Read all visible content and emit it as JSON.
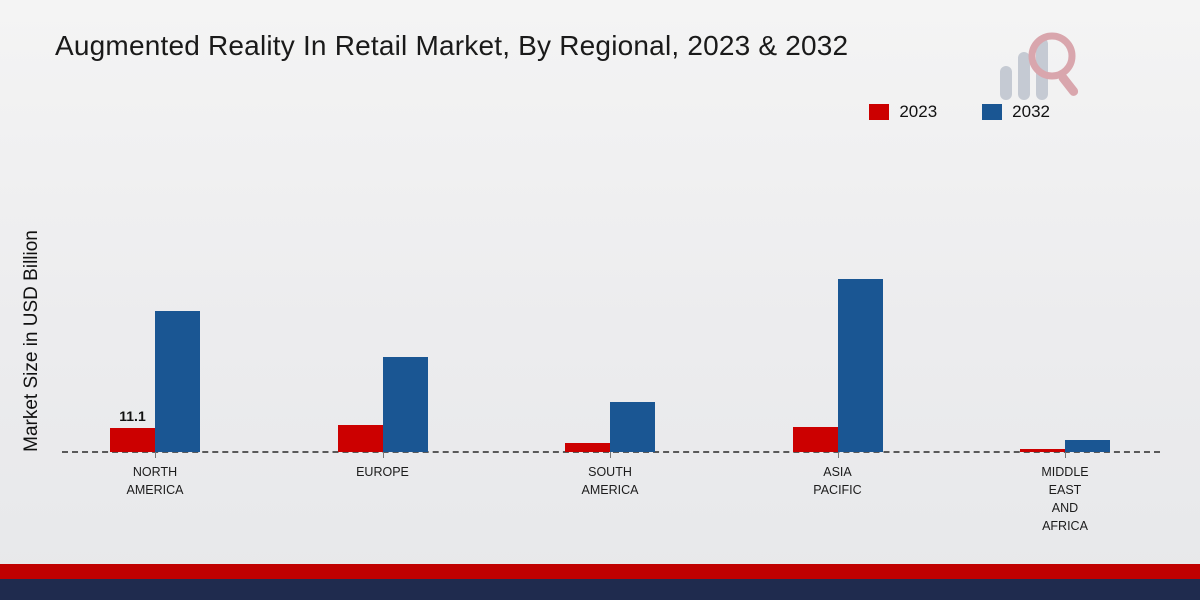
{
  "title": "Augmented Reality In Retail Market, By Regional, 2023 & 2032",
  "ylabel": "Market Size in USD Billion",
  "legend": [
    {
      "label": "2023",
      "color": "#cc0000"
    },
    {
      "label": "2032",
      "color": "#1a5693"
    }
  ],
  "colors": {
    "bar_2023": "#cc0000",
    "bar_2032": "#1a5693",
    "strip_red": "#c00000",
    "strip_navy": "#1f2b4e"
  },
  "logo_name": "market-research-chart-logo",
  "chart_data": {
    "type": "bar",
    "title": "Augmented Reality In Retail Market, By Regional, 2023 & 2032",
    "xlabel": "",
    "ylabel": "Market Size in USD Billion",
    "ylim": [
      0,
      80
    ],
    "grid": false,
    "legend_position": "top-right",
    "categories": [
      "NORTH\nAMERICA",
      "EUROPE",
      "SOUTH\nAMERICA",
      "ASIA\nPACIFIC",
      "MIDDLE\nEAST\nAND\nAFRICA"
    ],
    "series": [
      {
        "name": "2023",
        "color": "#cc0000",
        "values": [
          11.1,
          12.5,
          4.2,
          11.5,
          1.2
        ],
        "labels": [
          "11.1",
          "",
          "",
          "",
          ""
        ]
      },
      {
        "name": "2032",
        "color": "#1a5693",
        "values": [
          65,
          44,
          23,
          80,
          5.5
        ],
        "labels": [
          "",
          "",
          "",
          "",
          ""
        ]
      }
    ],
    "annotations": [
      {
        "text": "11.1",
        "series": "2023",
        "category": "NORTH AMERICA"
      }
    ]
  }
}
